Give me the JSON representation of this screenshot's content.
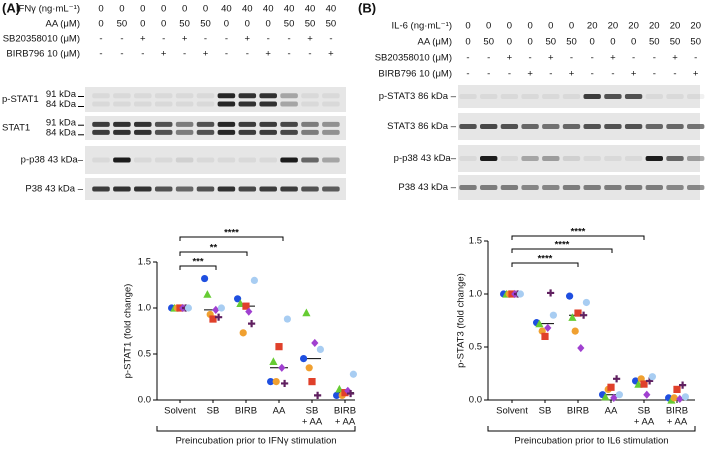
{
  "panel_a": {
    "label": "(A)",
    "treatments": [
      {
        "label": "IFNγ (ng·mL⁻¹)",
        "values": [
          "0",
          "0",
          "0",
          "0",
          "0",
          "0",
          "40",
          "40",
          "40",
          "40",
          "40",
          "40"
        ]
      },
      {
        "label": "AA (μM)",
        "values": [
          "0",
          "50",
          "0",
          "0",
          "50",
          "50",
          "0",
          "0",
          "0",
          "50",
          "50",
          "50"
        ]
      },
      {
        "label": "SB20358010 (μM)",
        "values": [
          "-",
          "-",
          "+",
          "-",
          "+",
          "-",
          "-",
          "+",
          "-",
          "-",
          "+",
          "-"
        ]
      },
      {
        "label": "BIRB796 10 (μM)",
        "values": [
          "-",
          "-",
          "-",
          "+",
          "-",
          "+",
          "-",
          "-",
          "+",
          "-",
          "-",
          "+"
        ]
      }
    ],
    "blots": [
      {
        "label": "p-STAT1",
        "markers": [
          "91 kDa",
          "84 kDa"
        ]
      },
      {
        "label": "STAT1",
        "markers": [
          "91 kDa",
          "84 kDa"
        ]
      },
      {
        "label": "p-p38 43 kDa–"
      },
      {
        "label": "P38 43 kDa –"
      }
    ]
  },
  "panel_b": {
    "label": "(B)",
    "treatments": [
      {
        "label": "IL-6 (ng·mL⁻¹)",
        "values": [
          "0",
          "0",
          "0",
          "0",
          "0",
          "0",
          "20",
          "20",
          "20",
          "20",
          "20",
          "20"
        ]
      },
      {
        "label": "AA (μM)",
        "values": [
          "0",
          "50",
          "0",
          "0",
          "50",
          "50",
          "0",
          "0",
          "0",
          "50",
          "50",
          "50"
        ]
      },
      {
        "label": "SB20358010 (μM)",
        "values": [
          "-",
          "-",
          "+",
          "-",
          "+",
          "-",
          "-",
          "+",
          "-",
          "-",
          "+",
          "-"
        ]
      },
      {
        "label": "BIRB796 10 (μM)",
        "values": [
          "-",
          "-",
          "-",
          "+",
          "-",
          "+",
          "-",
          "-",
          "+",
          "-",
          "-",
          "+"
        ]
      }
    ],
    "blots": [
      {
        "label": "p-STAT3 86 kDa –"
      },
      {
        "label": "STAT3 86 kDa –"
      },
      {
        "label": "p-p38 43 kDa–"
      },
      {
        "label": "P38 43 kDa –"
      }
    ]
  },
  "chart_data": [
    {
      "type": "scatter",
      "ylabel": "p-STAT1 (fold change)",
      "xlabel": "Preincubation prior to IFNγ stimulation",
      "categories": [
        [
          "Solvent"
        ],
        [
          "SB"
        ],
        [
          "BIRB"
        ],
        [
          "AA"
        ],
        [
          "SB",
          "+ AA"
        ],
        [
          "BIRB",
          "+ AA"
        ]
      ],
      "ylim": [
        0,
        1.5
      ],
      "yticks": [
        {
          "value": 0,
          "label": "0.0"
        },
        {
          "value": 0.5,
          "label": "0.5"
        },
        {
          "value": 1,
          "label": "1.0"
        },
        {
          "value": 1.5,
          "label": "1.5"
        }
      ],
      "annotations": [
        "****",
        "**",
        "***"
      ],
      "series": [
        {
          "color": "#1f4fe0",
          "marker": "circle",
          "values": [
            1.0,
            1.32,
            1.1,
            0.2,
            0.45,
            0.05
          ]
        },
        {
          "color": "#66cc33",
          "marker": "triangle",
          "values": [
            1.0,
            1.15,
            1.05,
            0.42,
            0.95,
            0.12
          ]
        },
        {
          "color": "#f0a030",
          "marker": "circle",
          "values": [
            1.0,
            0.93,
            0.73,
            0.2,
            0.35,
            0.05
          ]
        },
        {
          "color": "#e0402a",
          "marker": "square",
          "values": [
            1.0,
            0.88,
            1.02,
            0.58,
            0.2,
            0.08
          ]
        },
        {
          "color": "#a040d0",
          "marker": "diamond",
          "values": [
            1.0,
            0.98,
            0.96,
            0.35,
            0.62,
            0.1
          ]
        },
        {
          "color": "#602060",
          "marker": "plus",
          "values": [
            1.0,
            0.9,
            0.83,
            0.18,
            0.05,
            0.07
          ]
        },
        {
          "color": "#a8cdf2",
          "marker": "circle",
          "values": [
            1.0,
            1.0,
            1.3,
            0.88,
            0.55,
            0.28
          ]
        }
      ]
    },
    {
      "type": "scatter",
      "ylabel": "p-STAT3 (fold change)",
      "xlabel": "Preincubation prior to IL6 stimulation",
      "categories": [
        [
          "Solvent"
        ],
        [
          "SB"
        ],
        [
          "BIRB"
        ],
        [
          "AA"
        ],
        [
          "SB",
          "+ AA"
        ],
        [
          "BIRB",
          "+ AA"
        ]
      ],
      "ylim": [
        0,
        1.5
      ],
      "yticks": [
        {
          "value": 0,
          "label": "0.0"
        },
        {
          "value": 0.5,
          "label": "0.5"
        },
        {
          "value": 1,
          "label": "1.0"
        },
        {
          "value": 1.5,
          "label": "1.5"
        }
      ],
      "annotations": [
        "****",
        "****",
        "****"
      ],
      "series": [
        {
          "color": "#1f4fe0",
          "marker": "circle",
          "values": [
            1.0,
            0.73,
            0.98,
            0.05,
            0.18,
            0.02
          ]
        },
        {
          "color": "#66cc33",
          "marker": "triangle",
          "values": [
            1.0,
            0.72,
            0.78,
            0.03,
            0.15,
            0.0
          ]
        },
        {
          "color": "#f0a030",
          "marker": "circle",
          "values": [
            1.0,
            0.65,
            0.65,
            0.1,
            0.2,
            0.02
          ]
        },
        {
          "color": "#e0402a",
          "marker": "square",
          "values": [
            1.0,
            0.6,
            0.82,
            0.12,
            0.15,
            0.1
          ]
        },
        {
          "color": "#a040d0",
          "marker": "diamond",
          "values": [
            1.0,
            0.68,
            0.49,
            0.02,
            0.05,
            0.01
          ]
        },
        {
          "color": "#602060",
          "marker": "plus",
          "values": [
            1.0,
            1.01,
            0.8,
            0.2,
            0.18,
            0.14
          ]
        },
        {
          "color": "#a8cdf2",
          "marker": "circle",
          "values": [
            1.0,
            0.8,
            0.92,
            0.05,
            0.22,
            0.03
          ]
        }
      ]
    }
  ]
}
